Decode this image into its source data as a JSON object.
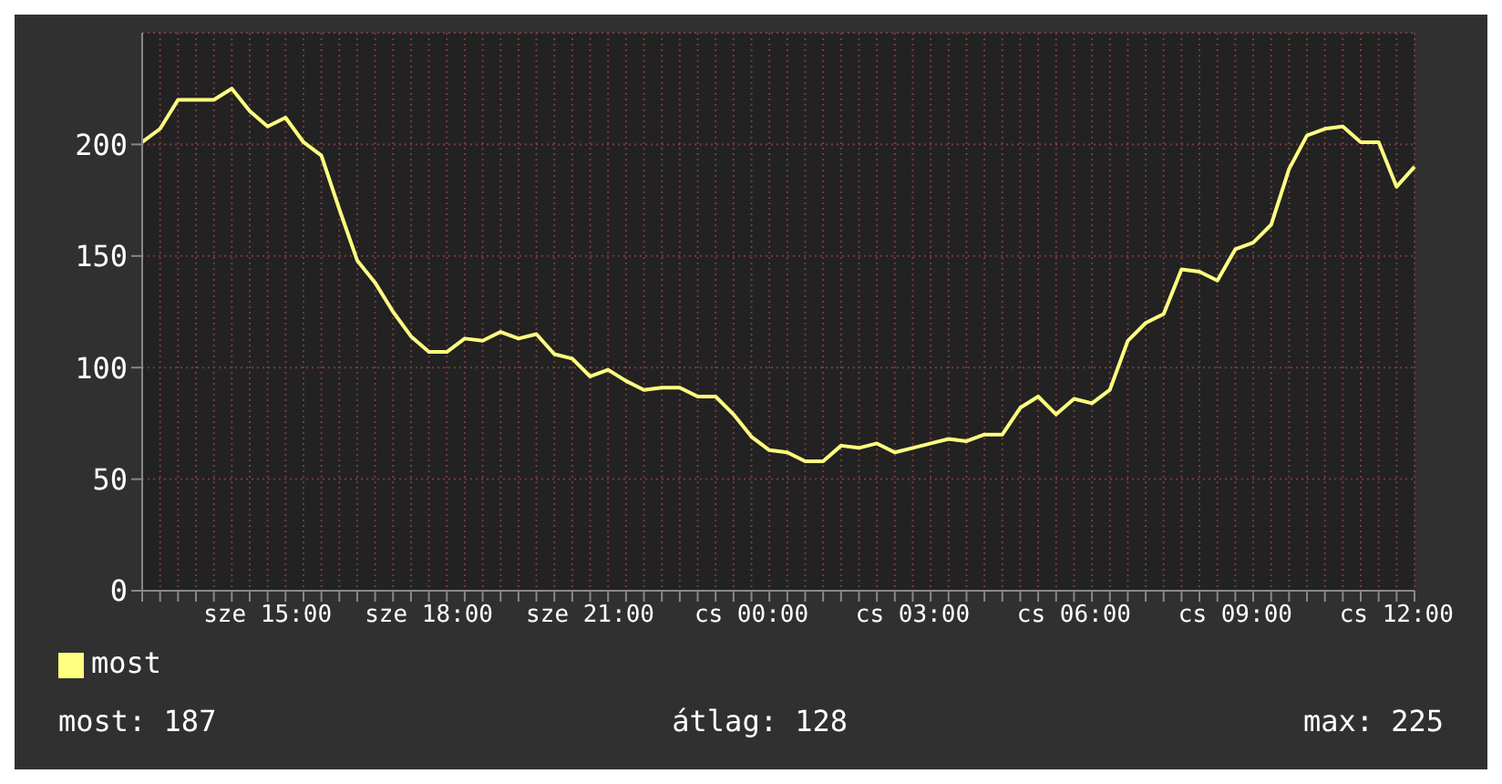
{
  "chart_data": {
    "type": "line",
    "categories": [
      null,
      null,
      null,
      null,
      null,
      null,
      null,
      "sze 15:00",
      null,
      null,
      null,
      null,
      null,
      null,
      null,
      null,
      "sze 18:00",
      null,
      null,
      null,
      null,
      null,
      null,
      null,
      null,
      "sze 21:00",
      null,
      null,
      null,
      null,
      null,
      null,
      null,
      null,
      "cs 00:00",
      null,
      null,
      null,
      null,
      null,
      null,
      null,
      null,
      "cs 03:00",
      null,
      null,
      null,
      null,
      null,
      null,
      null,
      null,
      "cs 06:00",
      null,
      null,
      null,
      null,
      null,
      null,
      null,
      null,
      "cs 09:00",
      null,
      null,
      null,
      null,
      null,
      null,
      null,
      null,
      "cs 12:00",
      null
    ],
    "series": [
      {
        "name": "most",
        "color": "#ffff80",
        "values": [
          201,
          207,
          220,
          220,
          220,
          225,
          215,
          208,
          212,
          201,
          195,
          171,
          148,
          138,
          125,
          114,
          107,
          107,
          113,
          112,
          116,
          113,
          115,
          106,
          104,
          96,
          99,
          94,
          90,
          91,
          91,
          87,
          87,
          79,
          69,
          63,
          62,
          58,
          58,
          65,
          64,
          66,
          62,
          64,
          66,
          68,
          67,
          70,
          70,
          82,
          87,
          79,
          86,
          84,
          90,
          112,
          120,
          124,
          144,
          143,
          139,
          153,
          156,
          164,
          189,
          204,
          207,
          208,
          201,
          201,
          181,
          190
        ]
      }
    ],
    "ylim": [
      0,
      250
    ],
    "yticks": [
      0,
      50,
      100,
      150,
      200
    ],
    "grid": true,
    "legend": "bottom left",
    "marker": "none",
    "line_style": "solid",
    "annotations": [
      "most: 187",
      "átlag: 128",
      "max: 225"
    ]
  }
}
